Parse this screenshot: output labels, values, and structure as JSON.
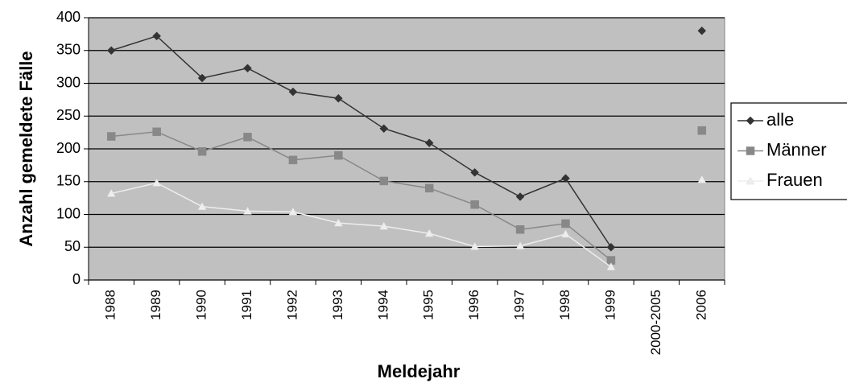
{
  "chart_data": {
    "type": "line",
    "y_label": "Anzahl gemeldete Fälle",
    "x_label": "Meldejahr",
    "categories": [
      "1988",
      "1989",
      "1990",
      "1991",
      "1992",
      "1993",
      "1994",
      "1995",
      "1996",
      "1997",
      "1998",
      "1999",
      "2000-2005",
      "2006"
    ],
    "series": [
      {
        "name": "alle",
        "color": "#333333",
        "marker": "diamond",
        "values": [
          350,
          372,
          308,
          323,
          287,
          277,
          231,
          209,
          164,
          127,
          155,
          50,
          null,
          380
        ]
      },
      {
        "name": "Männer",
        "color": "#888888",
        "marker": "square",
        "values": [
          219,
          226,
          196,
          218,
          183,
          190,
          151,
          140,
          115,
          77,
          86,
          30,
          null,
          228
        ]
      },
      {
        "name": "Frauen",
        "color": "#eeeeee",
        "marker": "triangle",
        "values": [
          132,
          148,
          112,
          105,
          104,
          87,
          82,
          71,
          51,
          52,
          70,
          20,
          null,
          153
        ]
      }
    ],
    "ylim": [
      0,
      400
    ],
    "yticks": [
      0,
      50,
      100,
      150,
      200,
      250,
      300,
      350,
      400
    ],
    "grid": true,
    "legend": "right",
    "plot_background": "#c0c0c0"
  }
}
